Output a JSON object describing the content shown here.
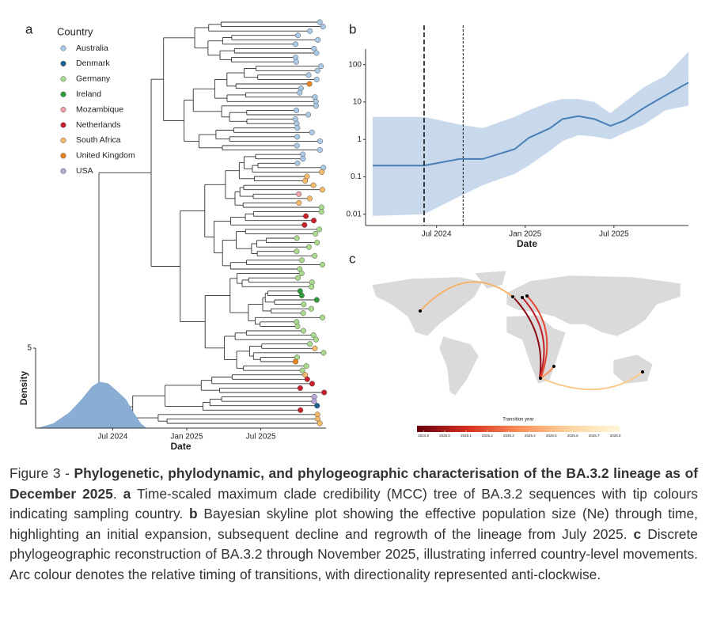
{
  "chart_data": [
    {
      "type": "area",
      "panel_label": "a",
      "x_label": "Date",
      "y_label": "Density",
      "color": "#8aaed3",
      "x": [
        2023.99,
        2024.1,
        2024.21,
        2024.29,
        2024.36,
        2024.41,
        2024.47,
        2024.52,
        2024.59,
        2024.64,
        2024.69,
        2024.73
      ],
      "values": [
        0,
        0.3,
        1.0,
        1.8,
        2.6,
        2.9,
        2.8,
        2.4,
        1.8,
        1.0,
        0.3,
        0
      ],
      "xlim": [
        2023.98,
        2025.94
      ],
      "xticks": [
        {
          "value": 2024.5,
          "label": "Jul 2024"
        },
        {
          "value": 2025,
          "label": "Jan 2025"
        },
        {
          "value": 2025.5,
          "label": "Jul 2025"
        }
      ],
      "ylim": [
        0,
        5
      ],
      "yticks": [
        5
      ]
    },
    {
      "type": "line",
      "panel_label": "b",
      "x_label": "Date",
      "color": "#4a7fb5",
      "band_color": "#c9d9ec",
      "log_y": true,
      "x": [
        2024.14,
        2024.43,
        2024.63,
        2024.76,
        2024.94,
        2025.02,
        2025.14,
        2025.21,
        2025.3,
        2025.39,
        2025.48,
        2025.56,
        2025.67,
        2025.79,
        2025.92
      ],
      "values": [
        0.2,
        0.2,
        0.3,
        0.3,
        0.55,
        1.1,
        2,
        3.5,
        4.2,
        3.5,
        2.3,
        3.2,
        7,
        15,
        33
      ],
      "upper": [
        4,
        4,
        2.5,
        2,
        4,
        6,
        10,
        12,
        12,
        10,
        5,
        10,
        25,
        50,
        220
      ],
      "lower": [
        0.009,
        0.01,
        0.03,
        0.06,
        0.12,
        0.2,
        0.5,
        0.9,
        1.3,
        1.2,
        1,
        1.5,
        2.5,
        6,
        8
      ],
      "vlines": [
        2024.43,
        2024.65
      ],
      "xlim": [
        2024.1,
        2025.92
      ],
      "xticks": [
        {
          "value": 2024.5,
          "label": "Jul 2024"
        },
        {
          "value": 2025,
          "label": "Jan 2025"
        },
        {
          "value": 2025.5,
          "label": "Jul 2025"
        }
      ],
      "ylim": [
        0.005,
        260
      ],
      "yticks": [
        0.01,
        0.1,
        1,
        10,
        100
      ]
    }
  ],
  "tree": {
    "legend": {
      "title": "Country",
      "items": [
        {
          "name": "Australia",
          "color": "#a9c9e6"
        },
        {
          "name": "Denmark",
          "color": "#1f5f8b"
        },
        {
          "name": "Germany",
          "color": "#a8d98c"
        },
        {
          "name": "Ireland",
          "color": "#2f9a3a"
        },
        {
          "name": "Mozambique",
          "color": "#f2a1a9"
        },
        {
          "name": "Netherlands",
          "color": "#c8202a"
        },
        {
          "name": "South Africa",
          "color": "#f5b968"
        },
        {
          "name": "United Kingdom",
          "color": "#e8821e"
        },
        {
          "name": "USA",
          "color": "#b9a7d7"
        }
      ]
    }
  },
  "map": {
    "panel_label": "c",
    "legend": {
      "title": "Transition year",
      "lim": [
        2024.87,
        2025.82
      ],
      "colors": [
        "#67000d",
        "#d7301f",
        "#fc8d59",
        "#fdd49e",
        "#fff7dc"
      ],
      "ticks": [
        2024.9,
        {
          "value": 2025,
          "label": "2025.0"
        },
        2025.1,
        2025.2,
        2025.3,
        2025.4,
        2025.5,
        2025.6,
        2025.7,
        2025.8
      ]
    }
  },
  "caption": {
    "parts": [
      {
        "text": "Figure 3 - ",
        "bold": false
      },
      {
        "text": "Phylogenetic, phylodynamic, and phylogeographic characterisation of the BA.3.2 lineage as of December 2025",
        "bold": true
      },
      {
        "text": ". ",
        "bold": false
      },
      {
        "text": "a",
        "bold": true
      },
      {
        "text": " Time-scaled maximum clade credibility (MCC) tree of BA.3.2 sequences with tip colours indicating sampling country. ",
        "bold": false
      },
      {
        "text": "b",
        "bold": true
      },
      {
        "text": " Bayesian skyline plot showing the effective population size (Ne) through time, highlighting an initial expansion, subsequent decline and regrowth of the lineage from July 2025. ",
        "bold": false
      },
      {
        "text": "c",
        "bold": true
      },
      {
        "text": " Discrete phylogeographic reconstruction of BA.3.2 through November 2025, illustrating inferred country-level movements. Arc colour denotes the relative timing of transitions, with directionality represented anti-clockwise.",
        "bold": false
      }
    ]
  }
}
